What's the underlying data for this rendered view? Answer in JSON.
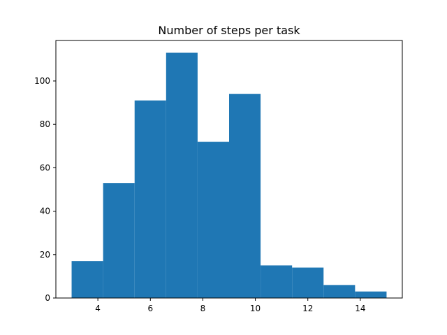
{
  "chart_data": {
    "type": "bar",
    "title": "Number of steps per task",
    "xlabel": "",
    "ylabel": "",
    "bins": [
      {
        "start": 3.0,
        "end": 4.2,
        "count": 17
      },
      {
        "start": 4.2,
        "end": 5.4,
        "count": 53
      },
      {
        "start": 5.4,
        "end": 6.6,
        "count": 91
      },
      {
        "start": 6.6,
        "end": 7.8,
        "count": 113
      },
      {
        "start": 7.8,
        "end": 9.0,
        "count": 72
      },
      {
        "start": 9.0,
        "end": 10.2,
        "count": 94
      },
      {
        "start": 10.2,
        "end": 11.4,
        "count": 15
      },
      {
        "start": 11.4,
        "end": 12.6,
        "count": 14
      },
      {
        "start": 12.6,
        "end": 13.8,
        "count": 6
      },
      {
        "start": 13.8,
        "end": 15.0,
        "count": 3
      }
    ],
    "xlim": [
      2.4,
      15.6
    ],
    "ylim": [
      0,
      118.65
    ],
    "xticks": [
      4,
      6,
      8,
      10,
      12,
      14
    ],
    "yticks": [
      0,
      20,
      40,
      60,
      80,
      100
    ],
    "bar_color": "#1f77b4",
    "grid": false,
    "legend": "none"
  }
}
